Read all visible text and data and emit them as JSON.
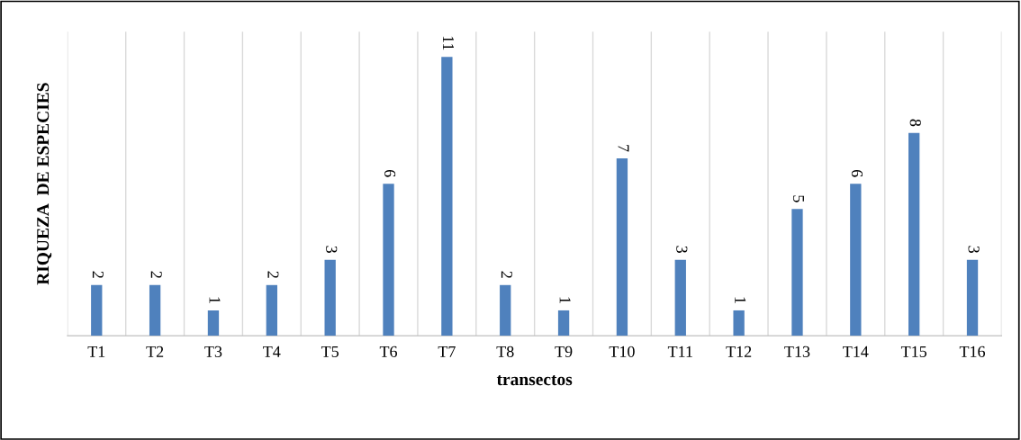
{
  "chart_data": {
    "type": "bar",
    "xlabel": "transectos",
    "ylabel": "RIQUEZA  DE ESPECIES",
    "categories": [
      "T1",
      "T2",
      "T3",
      "T4",
      "T5",
      "T6",
      "T7",
      "T8",
      "T9",
      "T10",
      "T11",
      "T12",
      "T13",
      "T14",
      "T15",
      "T16"
    ],
    "values": [
      2,
      2,
      1,
      2,
      3,
      6,
      11,
      2,
      1,
      7,
      3,
      1,
      5,
      6,
      8,
      3
    ],
    "color": "#4f81bd",
    "ylim": [
      0,
      12
    ],
    "data_labels": true,
    "grid": "x",
    "tick_labels": "x"
  }
}
